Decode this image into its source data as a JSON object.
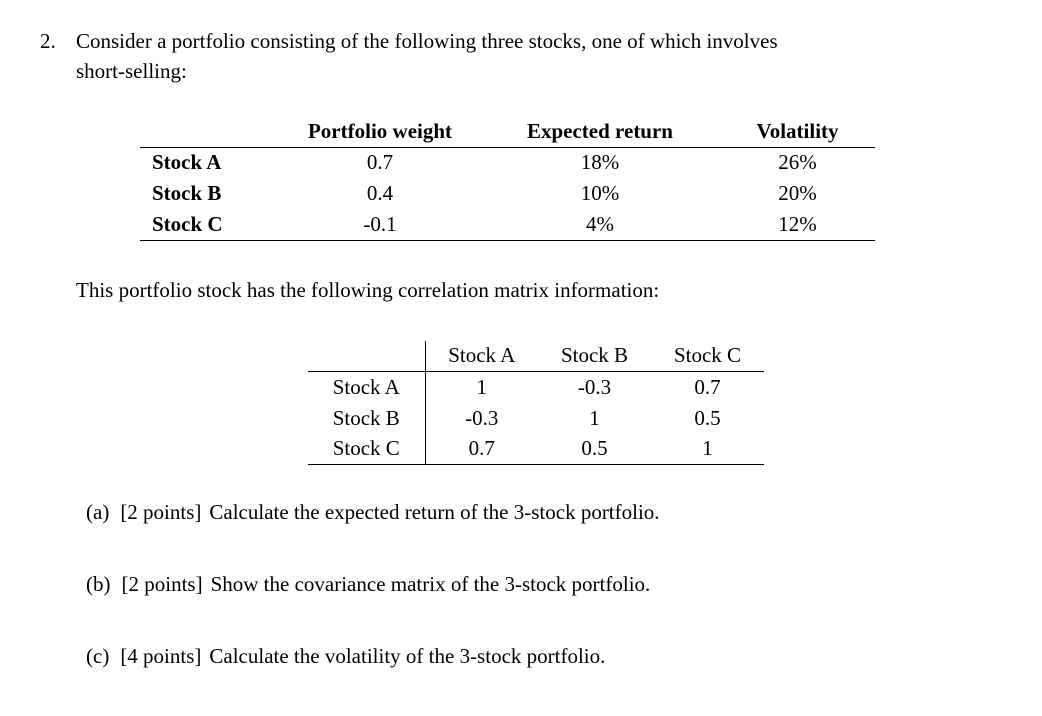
{
  "problem": {
    "number": "2.",
    "intro_line1": "Consider a portfolio consisting of the following three stocks, one of which involves",
    "intro_line2": "short-selling:",
    "correlation_intro": "This portfolio stock has the following correlation matrix information:"
  },
  "stocks_table": {
    "headers": {
      "weight": "Portfolio weight",
      "return": "Expected return",
      "volatility": "Volatility"
    },
    "rows": [
      {
        "label": "Stock A",
        "weight": "0.7",
        "return": "18%",
        "volatility": "26%"
      },
      {
        "label": "Stock B",
        "weight": "0.4",
        "return": "10%",
        "volatility": "20%"
      },
      {
        "label": "Stock C",
        "weight": "-0.1",
        "return": "4%",
        "volatility": "12%"
      }
    ]
  },
  "correlation_table": {
    "headers": [
      "Stock A",
      "Stock B",
      "Stock C"
    ],
    "rows": [
      {
        "label": "Stock A",
        "c0": "1",
        "c1": "-0.3",
        "c2": "0.7"
      },
      {
        "label": "Stock B",
        "c0": "-0.3",
        "c1": "1",
        "c2": "0.5"
      },
      {
        "label": "Stock C",
        "c0": "0.7",
        "c1": "0.5",
        "c2": "1"
      }
    ]
  },
  "questions": [
    {
      "label": "(a)",
      "points": "[2 points]",
      "text": "Calculate the expected return of the 3-stock portfolio."
    },
    {
      "label": "(b)",
      "points": "[2 points]",
      "text": "Show the covariance matrix of the 3-stock portfolio."
    },
    {
      "label": "(c)",
      "points": "[4 points]",
      "text": "Calculate the volatility of the 3-stock portfolio."
    }
  ]
}
